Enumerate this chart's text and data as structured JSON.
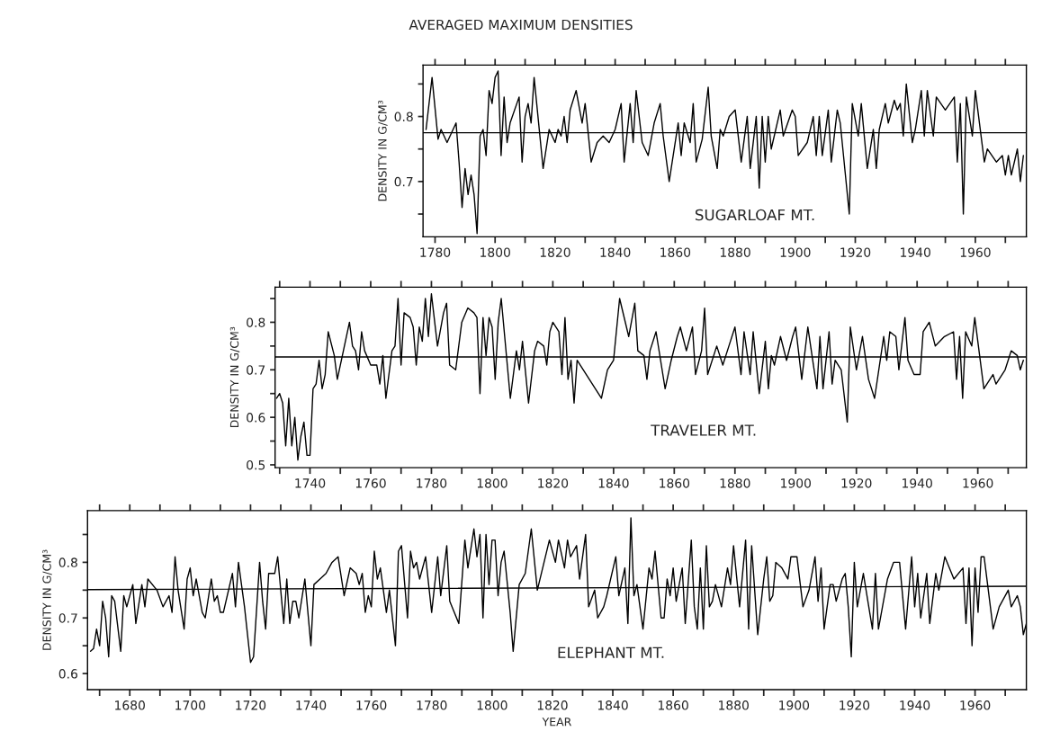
{
  "chart_data": [
    {
      "type": "line",
      "title": "AVERAGED MAXIMUM DENSITIES",
      "ylabel": "DENSITY IN G/CM³",
      "annotations": [
        "SUGARLOAF MT."
      ],
      "xlim": [
        1776,
        1977
      ],
      "ylim": [
        0.615,
        0.879
      ],
      "xticks": [
        1780,
        {
          "value": 1790,
          "label": null
        },
        1800,
        {
          "value": 1810,
          "label": null
        },
        1820,
        {
          "value": 1830,
          "label": null
        },
        1840,
        {
          "value": 1850,
          "label": null
        },
        1860,
        {
          "value": 1870,
          "label": null
        },
        1880,
        {
          "value": 1890,
          "label": null
        },
        1900,
        {
          "value": 1910,
          "label": null
        },
        1920,
        {
          "value": 1930,
          "label": null
        },
        1940,
        {
          "value": 1950,
          "label": null
        },
        1960,
        {
          "value": 1970,
          "label": null
        }
      ],
      "yticks": [
        {
          "value": 0.65,
          "label": null
        },
        0.7,
        {
          "value": 0.75,
          "label": null
        },
        0.8,
        {
          "value": 0.85,
          "label": null
        }
      ],
      "grid": false,
      "ref_lines": [
        {
          "axis": "y",
          "value": 0.775,
          "color": "#000000"
        }
      ],
      "series": [
        {
          "color": "#000000",
          "x": [
            1777,
            1779,
            1781,
            1782,
            1784,
            1787,
            1788,
            1789,
            1790,
            1791,
            1792,
            1793,
            1794,
            1795,
            1796,
            1797,
            1798,
            1799,
            1800,
            1801,
            1802,
            1803,
            1804,
            1805,
            1808,
            1809,
            1810,
            1811,
            1812,
            1813,
            1816,
            1818,
            1820,
            1821,
            1822,
            1823,
            1824,
            1825,
            1827,
            1829,
            1830,
            1832,
            1834,
            1836,
            1838,
            1840,
            1842,
            1843,
            1845,
            1846,
            1847,
            1849,
            1851,
            1853,
            1855,
            1856,
            1858,
            1861,
            1862,
            1863,
            1865,
            1866,
            1867,
            1869,
            1871,
            1872,
            1874,
            1875,
            1876,
            1878,
            1880,
            1882,
            1884,
            1885,
            1887,
            1888,
            1889,
            1890,
            1891,
            1892,
            1895,
            1896,
            1899,
            1900,
            1901,
            1904,
            1906,
            1907,
            1908,
            1909,
            1911,
            1912,
            1914,
            1915,
            1918,
            1919,
            1921,
            1922,
            1924,
            1926,
            1927,
            1928,
            1930,
            1931,
            1933,
            1934,
            1935,
            1936,
            1937,
            1939,
            1940,
            1942,
            1943,
            1944,
            1946,
            1947,
            1950,
            1953,
            1954,
            1955,
            1956,
            1957,
            1959,
            1960,
            1963,
            1964,
            1967,
            1969,
            1970,
            1971,
            1972,
            1974,
            1975,
            1976
          ],
          "values": [
            0.78,
            0.86,
            0.765,
            0.78,
            0.76,
            0.79,
            0.73,
            0.66,
            0.72,
            0.68,
            0.71,
            0.68,
            0.62,
            0.77,
            0.78,
            0.74,
            0.84,
            0.82,
            0.86,
            0.87,
            0.74,
            0.83,
            0.76,
            0.79,
            0.83,
            0.73,
            0.8,
            0.82,
            0.79,
            0.86,
            0.72,
            0.78,
            0.76,
            0.78,
            0.77,
            0.8,
            0.76,
            0.81,
            0.84,
            0.79,
            0.82,
            0.73,
            0.76,
            0.77,
            0.76,
            0.78,
            0.82,
            0.73,
            0.82,
            0.76,
            0.84,
            0.76,
            0.74,
            0.79,
            0.82,
            0.77,
            0.7,
            0.79,
            0.74,
            0.79,
            0.76,
            0.82,
            0.73,
            0.765,
            0.845,
            0.77,
            0.72,
            0.78,
            0.77,
            0.8,
            0.81,
            0.73,
            0.8,
            0.72,
            0.8,
            0.69,
            0.8,
            0.73,
            0.8,
            0.75,
            0.81,
            0.77,
            0.81,
            0.8,
            0.74,
            0.76,
            0.8,
            0.74,
            0.8,
            0.74,
            0.81,
            0.73,
            0.81,
            0.79,
            0.65,
            0.82,
            0.77,
            0.82,
            0.72,
            0.78,
            0.72,
            0.78,
            0.82,
            0.79,
            0.825,
            0.81,
            0.82,
            0.77,
            0.85,
            0.76,
            0.78,
            0.84,
            0.77,
            0.84,
            0.77,
            0.83,
            0.81,
            0.83,
            0.73,
            0.82,
            0.65,
            0.83,
            0.77,
            0.84,
            0.73,
            0.75,
            0.73,
            0.74,
            0.71,
            0.74,
            0.71,
            0.75,
            0.7,
            0.74
          ]
        }
      ]
    },
    {
      "type": "line",
      "ylabel": "DENSITY IN G/CM³",
      "annotations": [
        "TRAVELER MT."
      ],
      "xlim": [
        1728.5,
        1976
      ],
      "ylim": [
        0.494,
        0.874
      ],
      "xticks": [
        {
          "value": 1730,
          "label": null
        },
        1740,
        {
          "value": 1750,
          "label": null
        },
        1760,
        {
          "value": 1770,
          "label": null
        },
        1780,
        {
          "value": 1790,
          "label": null
        },
        1800,
        {
          "value": 1810,
          "label": null
        },
        1820,
        {
          "value": 1830,
          "label": null
        },
        1840,
        {
          "value": 1850,
          "label": null
        },
        1860,
        {
          "value": 1870,
          "label": null
        },
        1880,
        {
          "value": 1890,
          "label": null
        },
        1900,
        {
          "value": 1910,
          "label": null
        },
        1920,
        {
          "value": 1930,
          "label": null
        },
        1940,
        {
          "value": 1950,
          "label": null
        },
        1960,
        {
          "value": 1970,
          "label": null
        }
      ],
      "yticks": [
        0.5,
        {
          "value": 0.55,
          "label": null
        },
        0.6,
        {
          "value": 0.65,
          "label": null
        },
        0.7,
        {
          "value": 0.75,
          "label": null
        },
        0.8,
        {
          "value": 0.85,
          "label": null
        }
      ],
      "grid": false,
      "ref_lines": [
        {
          "axis": "y",
          "value": 0.727,
          "color": "#000000"
        }
      ],
      "series": [
        {
          "color": "#000000",
          "x": [
            1729,
            1730,
            1731,
            1732,
            1733,
            1734,
            1735,
            1736,
            1737,
            1738,
            1739,
            1740,
            1741,
            1742,
            1743,
            1744,
            1745,
            1746,
            1748,
            1749,
            1751,
            1753,
            1754,
            1755,
            1756,
            1757,
            1758,
            1760,
            1762,
            1763,
            1764,
            1765,
            1767,
            1768,
            1769,
            1770,
            1771,
            1773,
            1774,
            1775,
            1776,
            1777,
            1778,
            1779,
            1780,
            1782,
            1784,
            1785,
            1786,
            1788,
            1790,
            1792,
            1794,
            1795,
            1796,
            1797,
            1798,
            1799,
            1800,
            1801,
            1802,
            1803,
            1806,
            1808,
            1809,
            1810,
            1812,
            1814,
            1815,
            1817,
            1818,
            1819,
            1820,
            1822,
            1823,
            1824,
            1825,
            1826,
            1827,
            1828,
            1836,
            1838,
            1840,
            1842,
            1845,
            1847,
            1848,
            1850,
            1851,
            1852,
            1854,
            1857,
            1859,
            1861,
            1862,
            1864,
            1866,
            1867,
            1869,
            1870,
            1871,
            1874,
            1876,
            1878,
            1880,
            1882,
            1883,
            1885,
            1886,
            1888,
            1890,
            1891,
            1892,
            1893,
            1895,
            1897,
            1899,
            1900,
            1902,
            1904,
            1907,
            1908,
            1909,
            1911,
            1912,
            1913,
            1915,
            1917,
            1918,
            1920,
            1922,
            1924,
            1926,
            1929,
            1930,
            1931,
            1933,
            1934,
            1936,
            1937,
            1939,
            1941,
            1942,
            1944,
            1946,
            1949,
            1952,
            1953,
            1954,
            1955,
            1956,
            1958,
            1959,
            1962,
            1965,
            1966,
            1969,
            1971,
            1973,
            1974,
            1975
          ],
          "values": [
            0.64,
            0.65,
            0.63,
            0.54,
            0.64,
            0.54,
            0.6,
            0.51,
            0.56,
            0.59,
            0.52,
            0.52,
            0.66,
            0.67,
            0.72,
            0.66,
            0.69,
            0.78,
            0.73,
            0.68,
            0.74,
            0.8,
            0.75,
            0.74,
            0.7,
            0.78,
            0.74,
            0.71,
            0.71,
            0.67,
            0.73,
            0.64,
            0.74,
            0.75,
            0.85,
            0.71,
            0.82,
            0.81,
            0.79,
            0.71,
            0.79,
            0.76,
            0.85,
            0.77,
            0.86,
            0.75,
            0.82,
            0.84,
            0.71,
            0.7,
            0.8,
            0.83,
            0.82,
            0.81,
            0.65,
            0.81,
            0.73,
            0.81,
            0.79,
            0.68,
            0.8,
            0.85,
            0.64,
            0.74,
            0.7,
            0.76,
            0.63,
            0.74,
            0.76,
            0.75,
            0.71,
            0.78,
            0.8,
            0.78,
            0.69,
            0.81,
            0.68,
            0.72,
            0.63,
            0.72,
            0.64,
            0.7,
            0.72,
            0.85,
            0.77,
            0.84,
            0.74,
            0.73,
            0.68,
            0.74,
            0.78,
            0.66,
            0.72,
            0.77,
            0.79,
            0.74,
            0.79,
            0.69,
            0.74,
            0.83,
            0.69,
            0.75,
            0.71,
            0.75,
            0.79,
            0.69,
            0.78,
            0.69,
            0.78,
            0.65,
            0.76,
            0.66,
            0.73,
            0.71,
            0.77,
            0.72,
            0.77,
            0.79,
            0.68,
            0.79,
            0.66,
            0.77,
            0.66,
            0.78,
            0.67,
            0.72,
            0.7,
            0.59,
            0.79,
            0.7,
            0.77,
            0.68,
            0.64,
            0.77,
            0.72,
            0.78,
            0.77,
            0.7,
            0.81,
            0.72,
            0.69,
            0.69,
            0.78,
            0.8,
            0.75,
            0.77,
            0.78,
            0.68,
            0.77,
            0.64,
            0.78,
            0.75,
            0.81,
            0.66,
            0.69,
            0.67,
            0.7,
            0.74,
            0.73,
            0.7,
            0.72
          ]
        }
      ]
    },
    {
      "type": "line",
      "ylabel": "DENSITY IN G/CM³",
      "xlabel": "YEAR",
      "annotations": [
        "ELEPHANT MT."
      ],
      "xlim": [
        1666,
        1977
      ],
      "ylim": [
        0.571,
        0.893
      ],
      "xticks": [
        {
          "value": 1670,
          "label": null
        },
        1680,
        {
          "value": 1690,
          "label": null
        },
        1700,
        {
          "value": 1710,
          "label": null
        },
        1720,
        {
          "value": 1730,
          "label": null
        },
        1740,
        {
          "value": 1750,
          "label": null
        },
        1760,
        {
          "value": 1770,
          "label": null
        },
        1780,
        {
          "value": 1790,
          "label": null
        },
        1800,
        {
          "value": 1810,
          "label": null
        },
        1820,
        {
          "value": 1830,
          "label": null
        },
        1840,
        {
          "value": 1850,
          "label": null
        },
        1860,
        {
          "value": 1870,
          "label": null
        },
        1880,
        {
          "value": 1890,
          "label": null
        },
        1900,
        {
          "value": 1910,
          "label": null
        },
        1920,
        {
          "value": 1930,
          "label": null
        },
        1940,
        {
          "value": 1950,
          "label": null
        },
        1960,
        {
          "value": 1970,
          "label": null
        }
      ],
      "yticks": [
        0.6,
        {
          "value": 0.65,
          "label": null
        },
        0.7,
        {
          "value": 0.75,
          "label": null
        },
        0.8,
        {
          "value": 0.85,
          "label": null
        }
      ],
      "grid": false,
      "series": [
        {
          "color": "#000000",
          "x": [
            1667,
            1668,
            1669,
            1670,
            1671,
            1672,
            1673,
            1674,
            1675,
            1677,
            1678,
            1679,
            1681,
            1682,
            1684,
            1685,
            1686,
            1689,
            1691,
            1693,
            1694,
            1695,
            1696,
            1698,
            1699,
            1700,
            1701,
            1702,
            1704,
            1705,
            1707,
            1708,
            1709,
            1710,
            1711,
            1714,
            1715,
            1716,
            1718,
            1720,
            1721,
            1723,
            1724,
            1725,
            1726,
            1728,
            1729,
            1731,
            1732,
            1733,
            1734,
            1735,
            1736,
            1738,
            1740,
            1741,
            1743,
            1745,
            1747,
            1749,
            1751,
            1753,
            1755,
            1756,
            1757,
            1758,
            1759,
            1760,
            1761,
            1762,
            1763,
            1765,
            1766,
            1768,
            1769,
            1770,
            1772,
            1773,
            1774,
            1775,
            1776,
            1778,
            1780,
            1782,
            1783,
            1785,
            1786,
            1789,
            1791,
            1792,
            1794,
            1795,
            1796,
            1797,
            1798,
            1799,
            1800,
            1801,
            1802,
            1803,
            1804,
            1806,
            1807,
            1809,
            1811,
            1813,
            1815,
            1819,
            1821,
            1822,
            1824,
            1825,
            1826,
            1828,
            1829,
            1831,
            1832,
            1834,
            1835,
            1837,
            1838,
            1841,
            1842,
            1844,
            1845,
            1846,
            1847,
            1848,
            1850,
            1852,
            1853,
            1854,
            1856,
            1857,
            1858,
            1859,
            1860,
            1861,
            1863,
            1864,
            1866,
            1867,
            1868,
            1869,
            1870,
            1871,
            1872,
            1873,
            1874,
            1876,
            1878,
            1879,
            1880,
            1882,
            1884,
            1885,
            1886,
            1888,
            1890,
            1891,
            1892,
            1893,
            1894,
            1896,
            1898,
            1899,
            1901,
            1903,
            1905,
            1907,
            1908,
            1909,
            1910,
            1912,
            1913,
            1914,
            1916,
            1917,
            1918,
            1919,
            1920,
            1921,
            1923,
            1926,
            1927,
            1928,
            1931,
            1933,
            1935,
            1937,
            1939,
            1940,
            1941,
            1942,
            1944,
            1945,
            1947,
            1948,
            1950,
            1953,
            1956,
            1957,
            1958,
            1959,
            1960,
            1961,
            1962,
            1963,
            1966,
            1968,
            1971,
            1972,
            1974,
            1975,
            1976,
            1977
          ],
          "values": [
            0.64,
            0.645,
            0.68,
            0.65,
            0.73,
            0.7,
            0.63,
            0.74,
            0.73,
            0.64,
            0.74,
            0.72,
            0.76,
            0.69,
            0.76,
            0.72,
            0.77,
            0.75,
            0.72,
            0.74,
            0.71,
            0.81,
            0.75,
            0.68,
            0.77,
            0.79,
            0.74,
            0.77,
            0.71,
            0.7,
            0.77,
            0.73,
            0.74,
            0.71,
            0.71,
            0.78,
            0.72,
            0.8,
            0.72,
            0.62,
            0.63,
            0.8,
            0.73,
            0.68,
            0.78,
            0.78,
            0.81,
            0.69,
            0.77,
            0.69,
            0.73,
            0.73,
            0.7,
            0.77,
            0.65,
            0.76,
            0.77,
            0.78,
            0.8,
            0.81,
            0.74,
            0.79,
            0.78,
            0.76,
            0.78,
            0.71,
            0.74,
            0.72,
            0.82,
            0.77,
            0.79,
            0.71,
            0.75,
            0.65,
            0.82,
            0.83,
            0.7,
            0.82,
            0.79,
            0.8,
            0.77,
            0.81,
            0.71,
            0.81,
            0.74,
            0.83,
            0.73,
            0.69,
            0.84,
            0.79,
            0.86,
            0.81,
            0.85,
            0.7,
            0.85,
            0.76,
            0.84,
            0.84,
            0.74,
            0.8,
            0.82,
            0.71,
            0.64,
            0.76,
            0.78,
            0.86,
            0.75,
            0.84,
            0.8,
            0.84,
            0.79,
            0.84,
            0.81,
            0.83,
            0.77,
            0.85,
            0.72,
            0.75,
            0.7,
            0.72,
            0.74,
            0.81,
            0.74,
            0.79,
            0.69,
            0.88,
            0.74,
            0.76,
            0.68,
            0.79,
            0.77,
            0.82,
            0.7,
            0.7,
            0.77,
            0.74,
            0.79,
            0.73,
            0.79,
            0.69,
            0.84,
            0.72,
            0.68,
            0.79,
            0.68,
            0.83,
            0.72,
            0.73,
            0.76,
            0.72,
            0.79,
            0.76,
            0.83,
            0.72,
            0.84,
            0.68,
            0.83,
            0.67,
            0.77,
            0.81,
            0.73,
            0.74,
            0.8,
            0.79,
            0.77,
            0.81,
            0.81,
            0.72,
            0.75,
            0.81,
            0.73,
            0.79,
            0.68,
            0.76,
            0.76,
            0.73,
            0.77,
            0.78,
            0.72,
            0.63,
            0.8,
            0.72,
            0.78,
            0.68,
            0.78,
            0.68,
            0.77,
            0.8,
            0.8,
            0.68,
            0.81,
            0.72,
            0.78,
            0.7,
            0.78,
            0.69,
            0.78,
            0.75,
            0.81,
            0.77,
            0.79,
            0.69,
            0.79,
            0.65,
            0.79,
            0.71,
            0.81,
            0.81,
            0.68,
            0.72,
            0.75,
            0.72,
            0.74,
            0.72,
            0.67,
            0.69
          ]
        },
        {
          "type": "line",
          "color": "#000000",
          "x": [
            1666,
            1977
          ],
          "values": [
            0.751,
            0.757
          ]
        }
      ]
    }
  ]
}
